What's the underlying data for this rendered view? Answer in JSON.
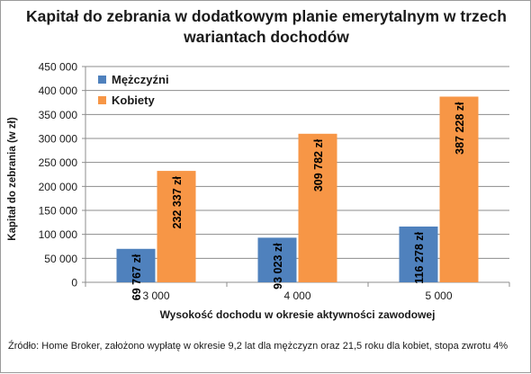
{
  "chart_data": {
    "type": "bar",
    "title": "Kapitał do zebrania w dodatkowym planie emerytalnym w trzech wariantach dochodów",
    "xlabel": "Wysokość dochodu w okresie aktywności zawodowej",
    "ylabel": "Kapitał do zebrania (w zł)",
    "categories": [
      "3 000",
      "4 000",
      "5 000"
    ],
    "ylim": [
      0,
      450000
    ],
    "yticks": [
      0,
      50000,
      100000,
      150000,
      200000,
      250000,
      300000,
      350000,
      400000,
      450000
    ],
    "ytick_labels": [
      "0",
      "50 000",
      "100 000",
      "150 000",
      "200 000",
      "250 000",
      "300 000",
      "350 000",
      "400 000",
      "450 000"
    ],
    "grid": true,
    "legend_position": "top-left",
    "series": [
      {
        "name": "Mężczyźni",
        "color": "#4f81bd",
        "values": [
          69767,
          93023,
          116278
        ],
        "labels": [
          "69 767 zł",
          "93 023 zł",
          "116 278 zł"
        ]
      },
      {
        "name": "Kobiety",
        "color": "#f79646",
        "values": [
          232337,
          309782,
          387228
        ],
        "labels": [
          "232 337 zł",
          "309 782 zł",
          "387 228 zł"
        ]
      }
    ]
  },
  "footnote": "Źródło: Home Broker, założono wypłatę w okresie 9,2 lat dla mężczyzn oraz 21,5 roku dla kobiet, stopa zwrotu 4%"
}
